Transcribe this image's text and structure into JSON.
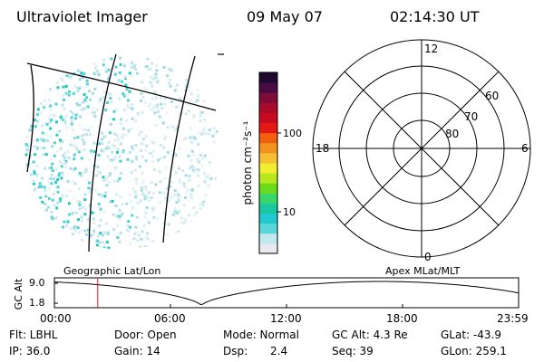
{
  "header": {
    "title": "Ultraviolet Imager",
    "date": "09 May 07",
    "time": "02:14:30 UT"
  },
  "colorbar": {
    "unit_label": "photon cm⁻²s⁻¹",
    "ticks": [
      {
        "value": 100,
        "label": "100"
      },
      {
        "value": 10,
        "label": "10"
      }
    ],
    "colors": [
      "#e8e8ee",
      "#bfe9ee",
      "#5ad6d8",
      "#22c8d0",
      "#19c8a0",
      "#3ad66a",
      "#6adb1a",
      "#b6e81e",
      "#f0ee30",
      "#f5c032",
      "#f29320",
      "#f06010",
      "#e51818",
      "#c80a1e",
      "#a80a2a",
      "#7d0c3a",
      "#4a0a44",
      "#1e0a2e"
    ]
  },
  "polar": {
    "mlt_labels": {
      "top": "12",
      "left": "18",
      "right": "6",
      "bottom": "0"
    },
    "lat_labels": [
      "60",
      "70",
      "80"
    ]
  },
  "timeline": {
    "ylabel": "GC Alt",
    "yticks": [
      "9.0",
      "1.8"
    ],
    "left_title": "Geographic Lat/Lon",
    "right_title": "Apex MLat/MLT",
    "xticks": [
      "00:00",
      "06:00",
      "12:00",
      "18:00",
      "23:59"
    ],
    "marker_time_hours": 2.24
  },
  "info": {
    "flt": "Flt: LBHL",
    "ip": "IP: 36.0",
    "door": "Door: Open",
    "gain": "Gain: 14",
    "mode": "Mode: Normal",
    "dsp_label": "Dsp:",
    "dsp_value": "2.4",
    "gcalt": "GC Alt: 4.3 Re",
    "seq": "Seq: 39",
    "glat": "GLat: -43.9",
    "glon": "GLon: 259.1"
  }
}
